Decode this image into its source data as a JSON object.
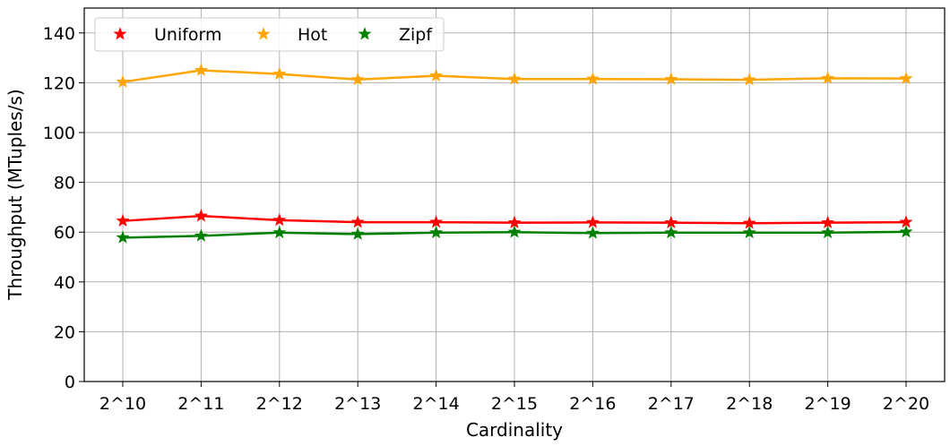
{
  "chart_data": {
    "type": "line",
    "title": "",
    "xlabel": "Cardinality",
    "ylabel": "Throughput (MTuples/s)",
    "categories": [
      "2^10",
      "2^11",
      "2^12",
      "2^13",
      "2^14",
      "2^15",
      "2^16",
      "2^17",
      "2^18",
      "2^19",
      "2^20"
    ],
    "ylim": [
      0,
      150
    ],
    "yticks": [
      0,
      20,
      40,
      60,
      80,
      100,
      120,
      140
    ],
    "grid": true,
    "legend_position": "top-left",
    "series": [
      {
        "name": "Uniform",
        "color": "#ff0000",
        "marker": "star",
        "values": [
          64.5,
          66.5,
          64.8,
          64.0,
          64.0,
          63.8,
          63.9,
          63.8,
          63.6,
          63.8,
          64.0
        ]
      },
      {
        "name": "Hot",
        "color": "#ffa500",
        "marker": "star",
        "values": [
          120.3,
          125.0,
          123.5,
          121.3,
          122.8,
          121.5,
          121.5,
          121.4,
          121.2,
          121.8,
          121.7
        ]
      },
      {
        "name": "Zipf",
        "color": "#008000",
        "marker": "star",
        "values": [
          57.8,
          58.5,
          59.8,
          59.2,
          59.8,
          60.0,
          59.6,
          59.8,
          59.8,
          59.8,
          60.1
        ]
      }
    ]
  }
}
